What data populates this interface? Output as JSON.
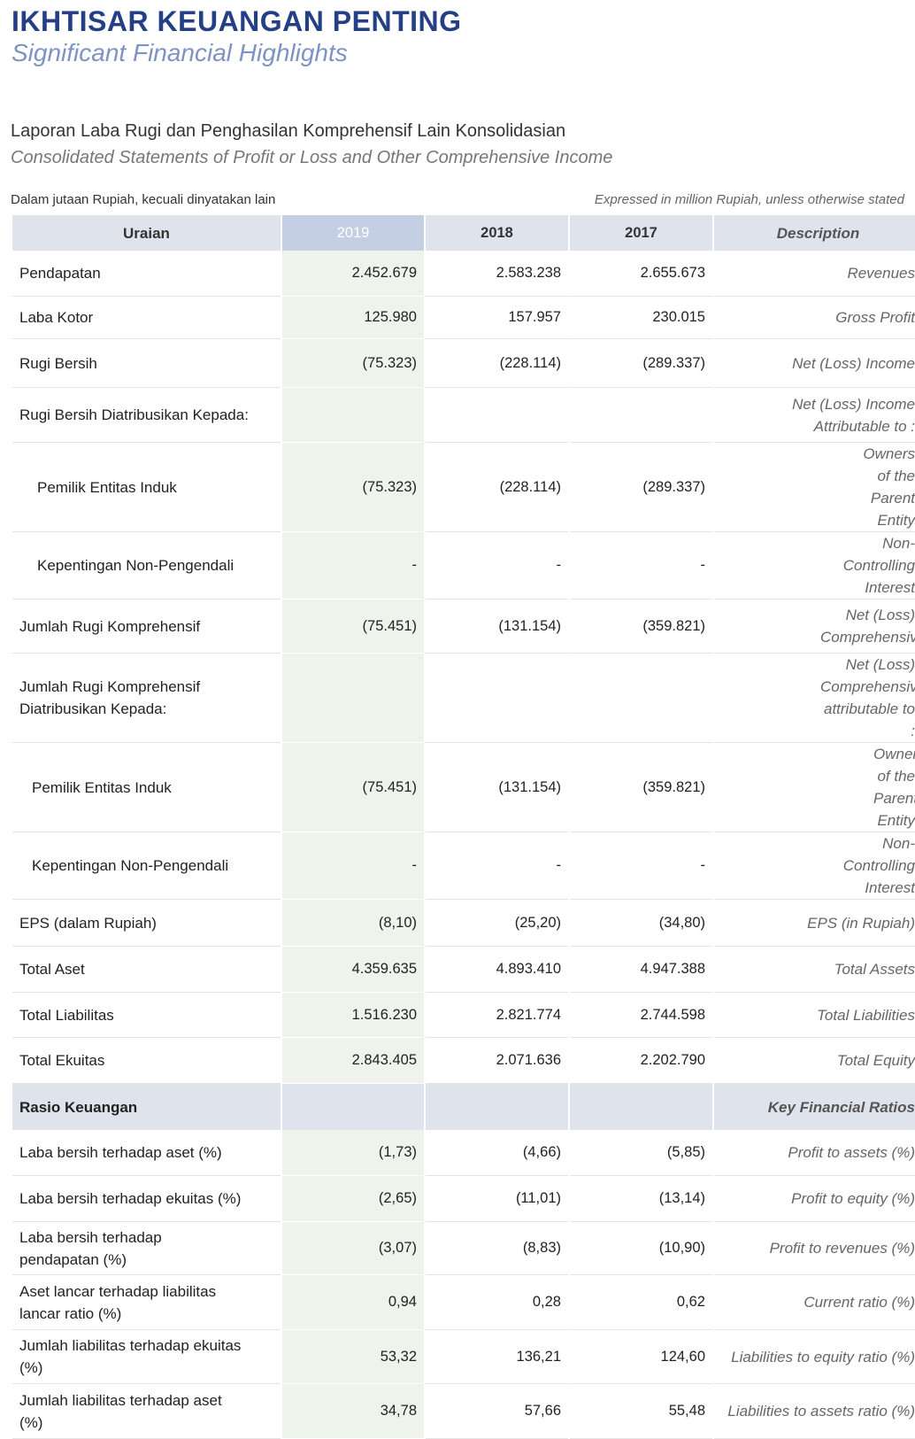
{
  "header": {
    "title": "IKHTISAR KEUANGAN PENTING",
    "subtitle": "Significant Financial Highlights"
  },
  "section": {
    "title": "Laporan Laba Rugi dan Penghasilan Komprehensif Lain Konsolidasian",
    "subtitle": "Consolidated Statements of Profit or Loss and Other Comprehensive Income"
  },
  "notes": {
    "left": "Dalam jutaan Rupiah, kecuali dinyatakan lain",
    "right": "Expressed in million Rupiah, unless otherwise stated"
  },
  "table": {
    "columns": [
      "Uraian",
      "2019",
      "2018",
      "2017",
      "Description"
    ],
    "rows": [
      [
        "Pendapatan",
        "2.452.679",
        "2.583.238",
        "2.655.673",
        "Revenues"
      ],
      [
        "Laba Kotor",
        "125.980",
        "157.957",
        "230.015",
        "Gross Profit"
      ],
      [
        "Rugi Bersih",
        "(75.323)",
        "(228.114)",
        "(289.337)",
        "Net (Loss) Income"
      ],
      [
        "Rugi Bersih Diatribusikan Kepada:",
        null,
        null,
        null,
        "Net (Loss) Income Attributable to :"
      ],
      [
        "Pemilik Entitas Induk",
        "(75.323)",
        "(228.114)",
        "(289.337)",
        "Owners of the Parent Entity"
      ],
      [
        "Kepentingan Non-Pengendali",
        "-",
        "-",
        "-",
        "Non-Controlling Interest"
      ],
      [
        "Jumlah Rugi Komprehensif",
        "(75.451)",
        "(131.154)",
        "(359.821)",
        "Net (Loss) Comprehensive"
      ],
      [
        "Jumlah Rugi Komprehensif Diatribusikan Kepada:",
        null,
        null,
        null,
        "Net (Loss) Comprehensive attributable to :"
      ],
      [
        "Pemilik Entitas Induk",
        "(75.451)",
        "(131.154)",
        "(359.821)",
        "Owners of the Parent Entity"
      ],
      [
        "Kepentingan Non-Pengendali",
        "-",
        "-",
        "-",
        "Non-Controlling Interest"
      ],
      [
        "EPS (dalam Rupiah)",
        "(8,10)",
        "(25,20)",
        "(34,80)",
        "EPS (in Rupiah)"
      ],
      [
        "Total Aset",
        "4.359.635",
        "4.893.410",
        "4.947.388",
        "Total Assets"
      ],
      [
        "Total Liabilitas",
        "1.516.230",
        "2.821.774",
        "2.744.598",
        "Total Liabilities"
      ],
      [
        "Total Ekuitas",
        "2.843.405",
        "2.071.636",
        "2.202.790",
        "Total Equity"
      ]
    ],
    "ratio_header": [
      "Rasio Keuangan",
      "Key Financial Ratios"
    ],
    "ratio_rows": [
      [
        "Laba bersih terhadap aset (%)",
        "(1,73)",
        "(4,66)",
        "(5,85)",
        "Profit to assets (%)"
      ],
      [
        "Laba bersih terhadap ekuitas (%)",
        "(2,65)",
        "(11,01)",
        "(13,14)",
        "Profit to equity (%)"
      ],
      [
        "Laba bersih terhadap pendapatan (%)",
        "(3,07)",
        "(8,83)",
        "(10,90)",
        "Profit to revenues (%)"
      ],
      [
        "Aset lancar terhadap liabilitas lancar ratio (%)",
        "0,94",
        "0,28",
        "0,62",
        "Current ratio (%)"
      ],
      [
        "Jumlah liabilitas terhadap ekuitas (%)",
        "53,32",
        "136,21",
        "124,60",
        "Liabilities to equity ratio (%)"
      ],
      [
        "Jumlah liabilitas terhadap aset (%)",
        "34,78",
        "57,66",
        "55,48",
        "Liabilities to assets ratio (%)"
      ]
    ]
  }
}
